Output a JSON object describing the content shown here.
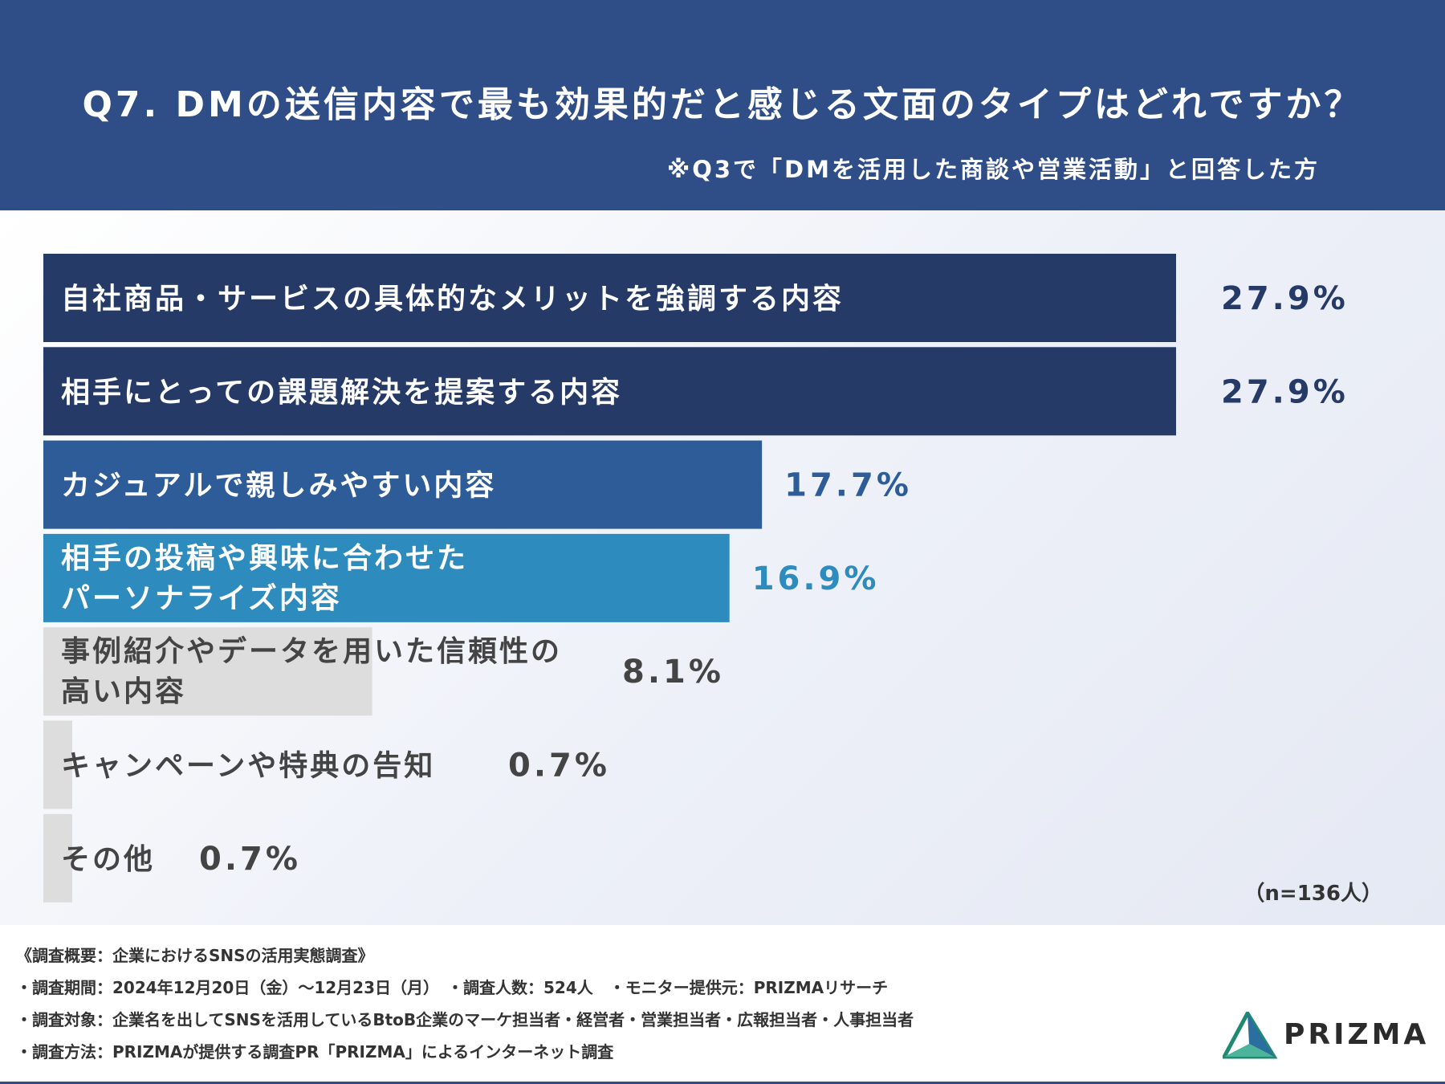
{
  "header": {
    "title": "Q7. DMの送信内容で最も効果的だと感じる文面のタイプはどれですか？",
    "subtitle": "※Q3で「DMを活用した商談や営業活動」と回答した方"
  },
  "chart_data": {
    "type": "bar",
    "orientation": "horizontal",
    "categories": [
      "自社商品・サービスの具体的なメリットを強調する内容",
      "相手にとっての課題解決を提案する内容",
      "カジュアルで親しみやすい内容",
      "相手の投稿や興味に合わせた\nパーソナライズ内容",
      "事例紹介やデータを用いた信頼性の\n高い内容",
      "キャンペーンや特典の告知",
      "その他"
    ],
    "values": [
      27.9,
      27.9,
      17.7,
      16.9,
      8.1,
      0.7,
      0.7
    ],
    "value_labels": [
      "27.9%",
      "27.9%",
      "17.7%",
      "16.9%",
      "8.1%",
      "0.7%",
      "0.7%"
    ],
    "bar_colors": [
      "#253a66",
      "#253a66",
      "#2d5c99",
      "#2d8bbd",
      "#dddddd",
      "#dddddd",
      "#dddddd"
    ],
    "label_colors": [
      "#ffffff",
      "#ffffff",
      "#ffffff",
      "#ffffff",
      "#444444",
      "#444444",
      "#444444"
    ],
    "value_colors": [
      "#253a66",
      "#253a66",
      "#2d5c99",
      "#2d8bbd",
      "#444444",
      "#444444",
      "#444444"
    ],
    "xlim": [
      0,
      27.9
    ],
    "sample_note": "（n=136人）"
  },
  "footer": {
    "lines": [
      "《調査概要：企業におけるSNSの活用実態調査》",
      "・調査期間：2024年12月20日（金）〜12月23日（月）　・調査人数：524人　・モニター提供元：PRIZMAリサーチ",
      "・調査対象：企業名を出してSNSを活用しているBtoB企業のマーケ担当者・経営者・営業担当者・広報担当者・人事担当者",
      "・調査方法：PRIZMAが提供する調査PR「PRIZMA」によるインターネット調査"
    ],
    "logo_text": "PRIZMA"
  }
}
